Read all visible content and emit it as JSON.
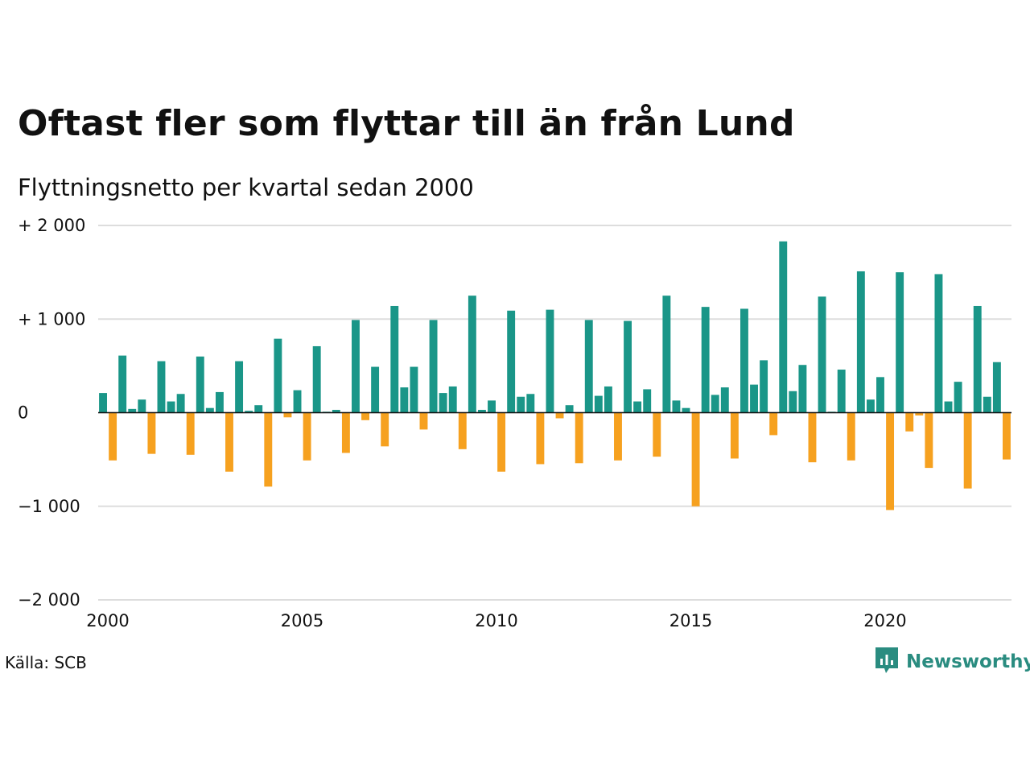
{
  "title": "Oftast fler som flyttar till än från Lund",
  "subtitle": "Flyttningsnetto per kvartal sedan 2000",
  "source": "Källa: SCB",
  "brand": {
    "name": "Newsworthy",
    "icon": "newsworthy-logo-icon",
    "color": "#2a8c80"
  },
  "colors": {
    "positive": "#1a9688",
    "negative": "#f6a11f",
    "grid": "#dddddd",
    "axis": "#111111"
  },
  "chart_data": {
    "type": "bar",
    "title": "Oftast fler som flyttar till än från Lund",
    "subtitle": "Flyttningsnetto per kvartal sedan 2000",
    "xlabel": "",
    "ylabel": "",
    "ylim": [
      -2000,
      2000
    ],
    "xlim": [
      2000,
      2023.5
    ],
    "y_ticks": [
      {
        "value": 2000,
        "label": "+ 2 000"
      },
      {
        "value": 1000,
        "label": "+ 1 000"
      },
      {
        "value": 0,
        "label": "0"
      },
      {
        "value": -1000,
        "label": "−1 000"
      },
      {
        "value": -2000,
        "label": "−2 000"
      }
    ],
    "x_ticks": [
      {
        "value": 2000,
        "label": "2000"
      },
      {
        "value": 2005,
        "label": "2005"
      },
      {
        "value": 2010,
        "label": "2010"
      },
      {
        "value": 2015,
        "label": "2015"
      },
      {
        "value": 2020,
        "label": "2020"
      }
    ],
    "grid": true,
    "categories": [
      "2000K1",
      "2000K2",
      "2000K3",
      "2000K4",
      "2001K1",
      "2001K2",
      "2001K3",
      "2001K4",
      "2002K1",
      "2002K2",
      "2002K3",
      "2002K4",
      "2003K1",
      "2003K2",
      "2003K3",
      "2003K4",
      "2004K1",
      "2004K2",
      "2004K3",
      "2004K4",
      "2005K1",
      "2005K2",
      "2005K3",
      "2005K4",
      "2006K1",
      "2006K2",
      "2006K3",
      "2006K4",
      "2007K1",
      "2007K2",
      "2007K3",
      "2007K4",
      "2008K1",
      "2008K2",
      "2008K3",
      "2008K4",
      "2009K1",
      "2009K2",
      "2009K3",
      "2009K4",
      "2010K1",
      "2010K2",
      "2010K3",
      "2010K4",
      "2011K1",
      "2011K2",
      "2011K3",
      "2011K4",
      "2012K1",
      "2012K2",
      "2012K3",
      "2012K4",
      "2013K1",
      "2013K2",
      "2013K3",
      "2013K4",
      "2014K1",
      "2014K2",
      "2014K3",
      "2014K4",
      "2015K1",
      "2015K2",
      "2015K3",
      "2015K4",
      "2016K1",
      "2016K2",
      "2016K3",
      "2016K4",
      "2017K1",
      "2017K2",
      "2017K3",
      "2017K4",
      "2018K1",
      "2018K2",
      "2018K3",
      "2018K4",
      "2019K1",
      "2019K2",
      "2019K3",
      "2019K4",
      "2020K1",
      "2020K2",
      "2020K3",
      "2020K4",
      "2021K1",
      "2021K2",
      "2021K3",
      "2021K4",
      "2022K1",
      "2022K2",
      "2022K3",
      "2022K4",
      "2023K1",
      "2023K2"
    ],
    "values": [
      210,
      -510,
      610,
      40,
      140,
      -440,
      550,
      120,
      200,
      -450,
      600,
      50,
      220,
      -630,
      550,
      20,
      80,
      -790,
      790,
      -50,
      240,
      -510,
      710,
      10,
      30,
      -430,
      990,
      -80,
      490,
      -360,
      1140,
      270,
      490,
      -180,
      990,
      210,
      280,
      -390,
      1250,
      30,
      130,
      -630,
      1090,
      170,
      200,
      -550,
      1100,
      -60,
      80,
      -540,
      990,
      180,
      280,
      -510,
      980,
      120,
      250,
      -470,
      1250,
      130,
      50,
      -1000,
      1130,
      190,
      270,
      -490,
      1110,
      300,
      560,
      -240,
      1830,
      230,
      510,
      -530,
      1240,
      10,
      460,
      -510,
      1510,
      140,
      380,
      -1040,
      1500,
      -200,
      -30,
      -590,
      1480,
      120,
      330,
      -810,
      1140,
      170,
      540,
      -500
    ]
  }
}
